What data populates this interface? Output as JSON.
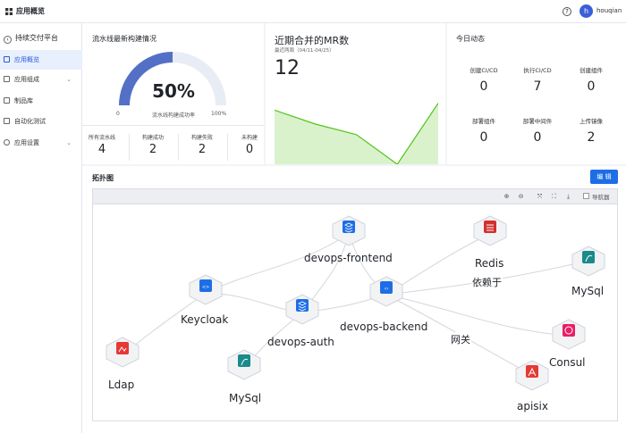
{
  "header": {
    "title": "应用概览",
    "help_icon": "?",
    "avatar_initial": "h",
    "username": "houqian"
  },
  "sidebar": {
    "project": {
      "label": "持续交付平台",
      "chevron": "‹"
    },
    "items": [
      {
        "label": "应用概览",
        "icon": "overview-icon",
        "active": true
      },
      {
        "label": "应用组成",
        "icon": "components-icon",
        "chevron": "⌄"
      },
      {
        "label": "制品库",
        "icon": "artifact-icon"
      },
      {
        "label": "自动化测试",
        "icon": "test-icon"
      },
      {
        "label": "应用设置",
        "icon": "settings-icon",
        "chevron": "⌄"
      }
    ]
  },
  "build_card": {
    "title": "流水线最新构建情况",
    "success_rate": "50%",
    "success_rate_value": 0.5,
    "gauge_min": "0",
    "gauge_max": "100%",
    "gauge_label": "流水线构建成功率",
    "stats": [
      {
        "label": "所有流水线",
        "value": "4"
      },
      {
        "label": "构建成功",
        "value": "2"
      },
      {
        "label": "构建失败",
        "value": "2"
      },
      {
        "label": "未构建",
        "value": "0"
      }
    ],
    "colors": {
      "gauge_fill": "#5470c6",
      "gauge_track": "#e8ecf5"
    }
  },
  "mr_card": {
    "title": "近期合并的MR数",
    "subtitle": "最近两周（04/11-04/25）",
    "count": "12",
    "chart_data": {
      "type": "area",
      "values": [
        3.1,
        2.3,
        1.7,
        0,
        3.5
      ],
      "ylim": [
        0,
        4.5
      ],
      "color": "#52c41a"
    }
  },
  "today_card": {
    "title": "今日动态",
    "items": [
      {
        "label": "创建CI/CD",
        "value": "0"
      },
      {
        "label": "执行CI/CD",
        "value": "7"
      },
      {
        "label": "创建组件",
        "value": "0"
      },
      {
        "label": "部署组件",
        "value": "0"
      },
      {
        "label": "部署中间件",
        "value": "0"
      },
      {
        "label": "上传镜像",
        "value": "2"
      }
    ]
  },
  "topology": {
    "title": "拓扑图",
    "edit_label": "编 辑",
    "navigator_label": "导航器",
    "tools": [
      "zoom-in-icon",
      "zoom-out-icon",
      "fit-icon",
      "fullscreen-icon",
      "download-icon"
    ],
    "nodes": [
      {
        "id": "frontend",
        "label": "devops-frontend",
        "icon_color": "#1d6ee6",
        "icon": "stack-icon"
      },
      {
        "id": "keycloak",
        "label": "Keycloak",
        "icon_color": "#1d6ee6",
        "icon": "keycloak-icon"
      },
      {
        "id": "auth",
        "label": "devops-auth",
        "icon_color": "#1d6ee6",
        "icon": "stack-icon"
      },
      {
        "id": "backend",
        "label": "devops-backend",
        "icon_color": "#1d6ee6",
        "icon": "code-icon"
      },
      {
        "id": "ldap",
        "label": "Ldap",
        "icon_color": "#e53935",
        "icon": "ldap-icon"
      },
      {
        "id": "mysql1",
        "label": "MySql",
        "icon_color": "#1a8a8a",
        "icon": "mysql-icon"
      },
      {
        "id": "redis",
        "label": "Redis",
        "icon_color": "#d32f2f",
        "icon": "redis-icon"
      },
      {
        "id": "mysql2",
        "label": "MySql",
        "icon_color": "#1a8a8a",
        "icon": "mysql-icon"
      },
      {
        "id": "consul",
        "label": "Consul",
        "icon_color": "#e91e63",
        "icon": "consul-icon"
      },
      {
        "id": "apisix",
        "label": "apisix",
        "icon_color": "#e53935",
        "icon": "apisix-icon"
      }
    ],
    "edge_labels": {
      "depends_on": "依赖于",
      "gateway": "网关"
    }
  }
}
